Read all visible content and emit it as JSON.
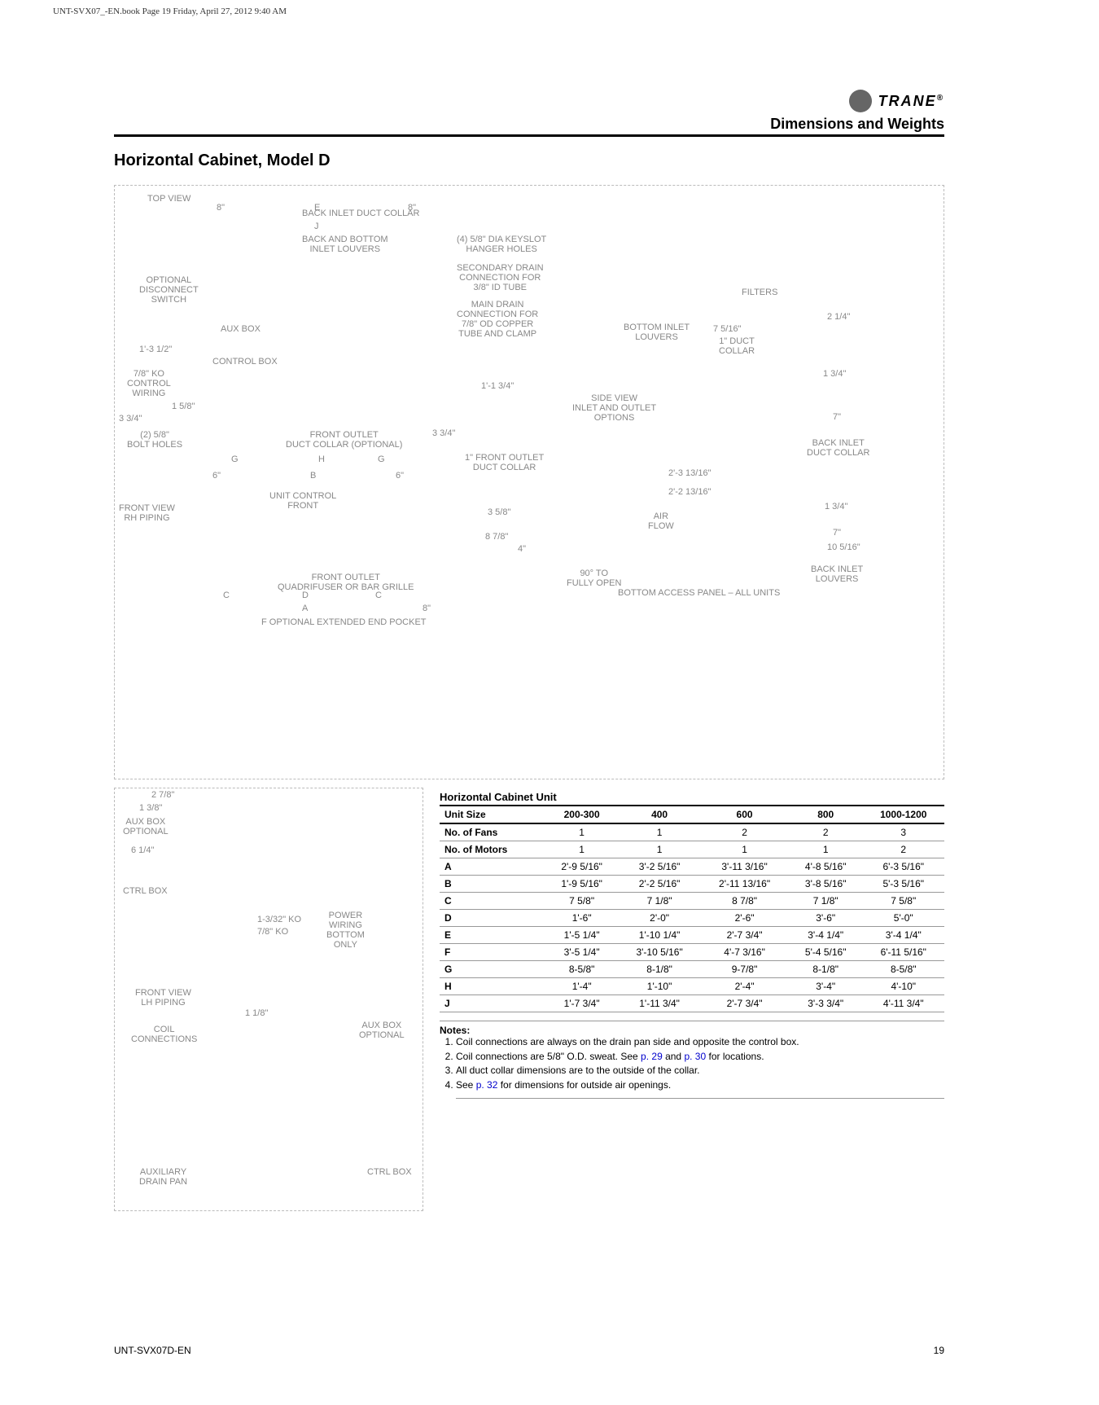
{
  "print_header": "UNT-SVX07_-EN.book  Page 19  Friday, April 27, 2012  9:40 AM",
  "brand": "TRANE",
  "section_title": "Dimensions and Weights",
  "page_title": "Horizontal Cabinet, Model D",
  "diagram_labels": {
    "top_view": "TOP VIEW",
    "back_inlet_duct": "BACK INLET DUCT COLLAR",
    "back_bottom_inlet": "BACK AND BOTTOM\nINLET LOUVERS",
    "keyslot": "(4) 5/8\" DIA KEYSLOT\nHANGER HOLES",
    "secondary_drain": "SECONDARY DRAIN\nCONNECTION FOR\n3/8\" ID TUBE",
    "main_drain": "MAIN DRAIN\nCONNECTION FOR\n7/8\" OD COPPER\nTUBE AND CLAMP",
    "disconnect": "OPTIONAL\nDISCONNECT\nSWITCH",
    "aux_box": "AUX BOX",
    "control_box": "CONTROL BOX",
    "ko_control": "7/8\" KO\nCONTROL\nWIRING",
    "bolt_holes": "(2) 5/8\"\nBOLT HOLES",
    "front_outlet_duct": "FRONT OUTLET\nDUCT COLLAR (OPTIONAL)",
    "front_outlet_duct2": "1\" FRONT OUTLET\nDUCT COLLAR",
    "front_view_rh": "FRONT VIEW\nRH PIPING",
    "unit_control_front": "UNIT CONTROL\nFRONT",
    "front_outlet_grille": "FRONT OUTLET\nQUADRIFUSER OR BAR GRILLE",
    "extended_pocket": "F OPTIONAL EXTENDED END POCKET",
    "side_view": "SIDE VIEW\nINLET AND OUTLET\nOPTIONS",
    "filters": "FILTERS",
    "bottom_inlet": "BOTTOM INLET\nLOUVERS",
    "duct_collar_1": "1\" DUCT\nCOLLAR",
    "back_inlet_dc": "BACK INLET\nDUCT COLLAR",
    "back_inlet_lv": "BACK INLET\nLOUVERS",
    "air_flow": "AIR\nFLOW",
    "bottom_access": "BOTTOM ACCESS PANEL – ALL UNITS",
    "ninety_open": "90° TO\nFULLY OPEN",
    "front_view_lh": "FRONT VIEW\nLH PIPING",
    "aux_box_opt": "AUX BOX\nOPTIONAL",
    "ctrl_box": "CTRL BOX",
    "coil_conn": "COIL\nCONNECTIONS",
    "aux_drain": "AUXILIARY\nDRAIN PAN",
    "power_wiring": "POWER\nWIRING\nBOTTOM\nONLY",
    "ko1": "1-3/32\" KO",
    "ko2": "7/8\" KO"
  },
  "diagram_dims": {
    "d1": "8\"",
    "d2": "1'-3 1/2\"",
    "d3": "1 5/8\"",
    "d4": "3 3/4\"",
    "d5": "1'-1 3/4\"",
    "d6": "3 3/4\"",
    "d7": "6\"",
    "d8": "3 5/8\"",
    "d9": "8 7/8\"",
    "d10": "4\"",
    "d11": "2'-3 13/16\"",
    "d12": "2'-2 13/16\"",
    "d13": "2 1/4\"",
    "d14": "7 5/16\"",
    "d15": "1 3/4\"",
    "d16": "7\"",
    "d17": "10 5/16\"",
    "d18": "2 7/8\"",
    "d19": "1 3/8\"",
    "d20": "6 1/4\"",
    "d21": "1 1/8\""
  },
  "table": {
    "caption": "Horizontal Cabinet Unit",
    "columns": [
      "Unit Size",
      "200-300",
      "400",
      "600",
      "800",
      "1000-1200"
    ],
    "rows": [
      [
        "No. of Fans",
        "1",
        "1",
        "2",
        "2",
        "3"
      ],
      [
        "No. of Motors",
        "1",
        "1",
        "1",
        "1",
        "2"
      ],
      [
        "A",
        "2'-9 5/16\"",
        "3'-2 5/16\"",
        "3'-11 3/16\"",
        "4'-8 5/16\"",
        "6'-3 5/16\""
      ],
      [
        "B",
        "1'-9 5/16\"",
        "2'-2 5/16\"",
        "2'-11 13/16\"",
        "3'-8 5/16\"",
        "5'-3 5/16\""
      ],
      [
        "C",
        "7 5/8\"",
        "7 1/8\"",
        "8 7/8\"",
        "7 1/8\"",
        "7 5/8\""
      ],
      [
        "D",
        "1'-6\"",
        "2'-0\"",
        "2'-6\"",
        "3'-6\"",
        "5'-0\""
      ],
      [
        "E",
        "1'-5 1/4\"",
        "1'-10 1/4\"",
        "2'-7 3/4\"",
        "3'-4 1/4\"",
        "3'-4 1/4\""
      ],
      [
        "F",
        "3'-5 1/4\"",
        "3'-10 5/16\"",
        "4'-7 3/16\"",
        "5'-4 5/16\"",
        "6'-11 5/16\""
      ],
      [
        "G",
        "8-5/8\"",
        "8-1/8\"",
        "9-7/8\"",
        "8-1/8\"",
        "8-5/8\""
      ],
      [
        "H",
        "1'-4\"",
        "1'-10\"",
        "2'-4\"",
        "3'-4\"",
        "4'-10\""
      ],
      [
        "J",
        "1'-7 3/4\"",
        "1'-11 3/4\"",
        "2'-7 3/4\"",
        "3'-3 3/4\"",
        "4'-11 3/4\""
      ]
    ]
  },
  "notes_title": "Notes:",
  "notes": [
    "Coil connections are always on the drain pan side and opposite the control box.",
    "Coil connections are 5/8\" O.D. sweat. See <span class='page-link'>p. 29</span> and <span class='page-link'>p. 30</span> for locations.",
    "All duct collar dimensions are to the outside of the collar.",
    "See <span class='page-link'>p. 32</span> for dimensions for outside air openings."
  ],
  "footer": {
    "docnum": "UNT-SVX07D-EN",
    "pagenum": "19"
  }
}
